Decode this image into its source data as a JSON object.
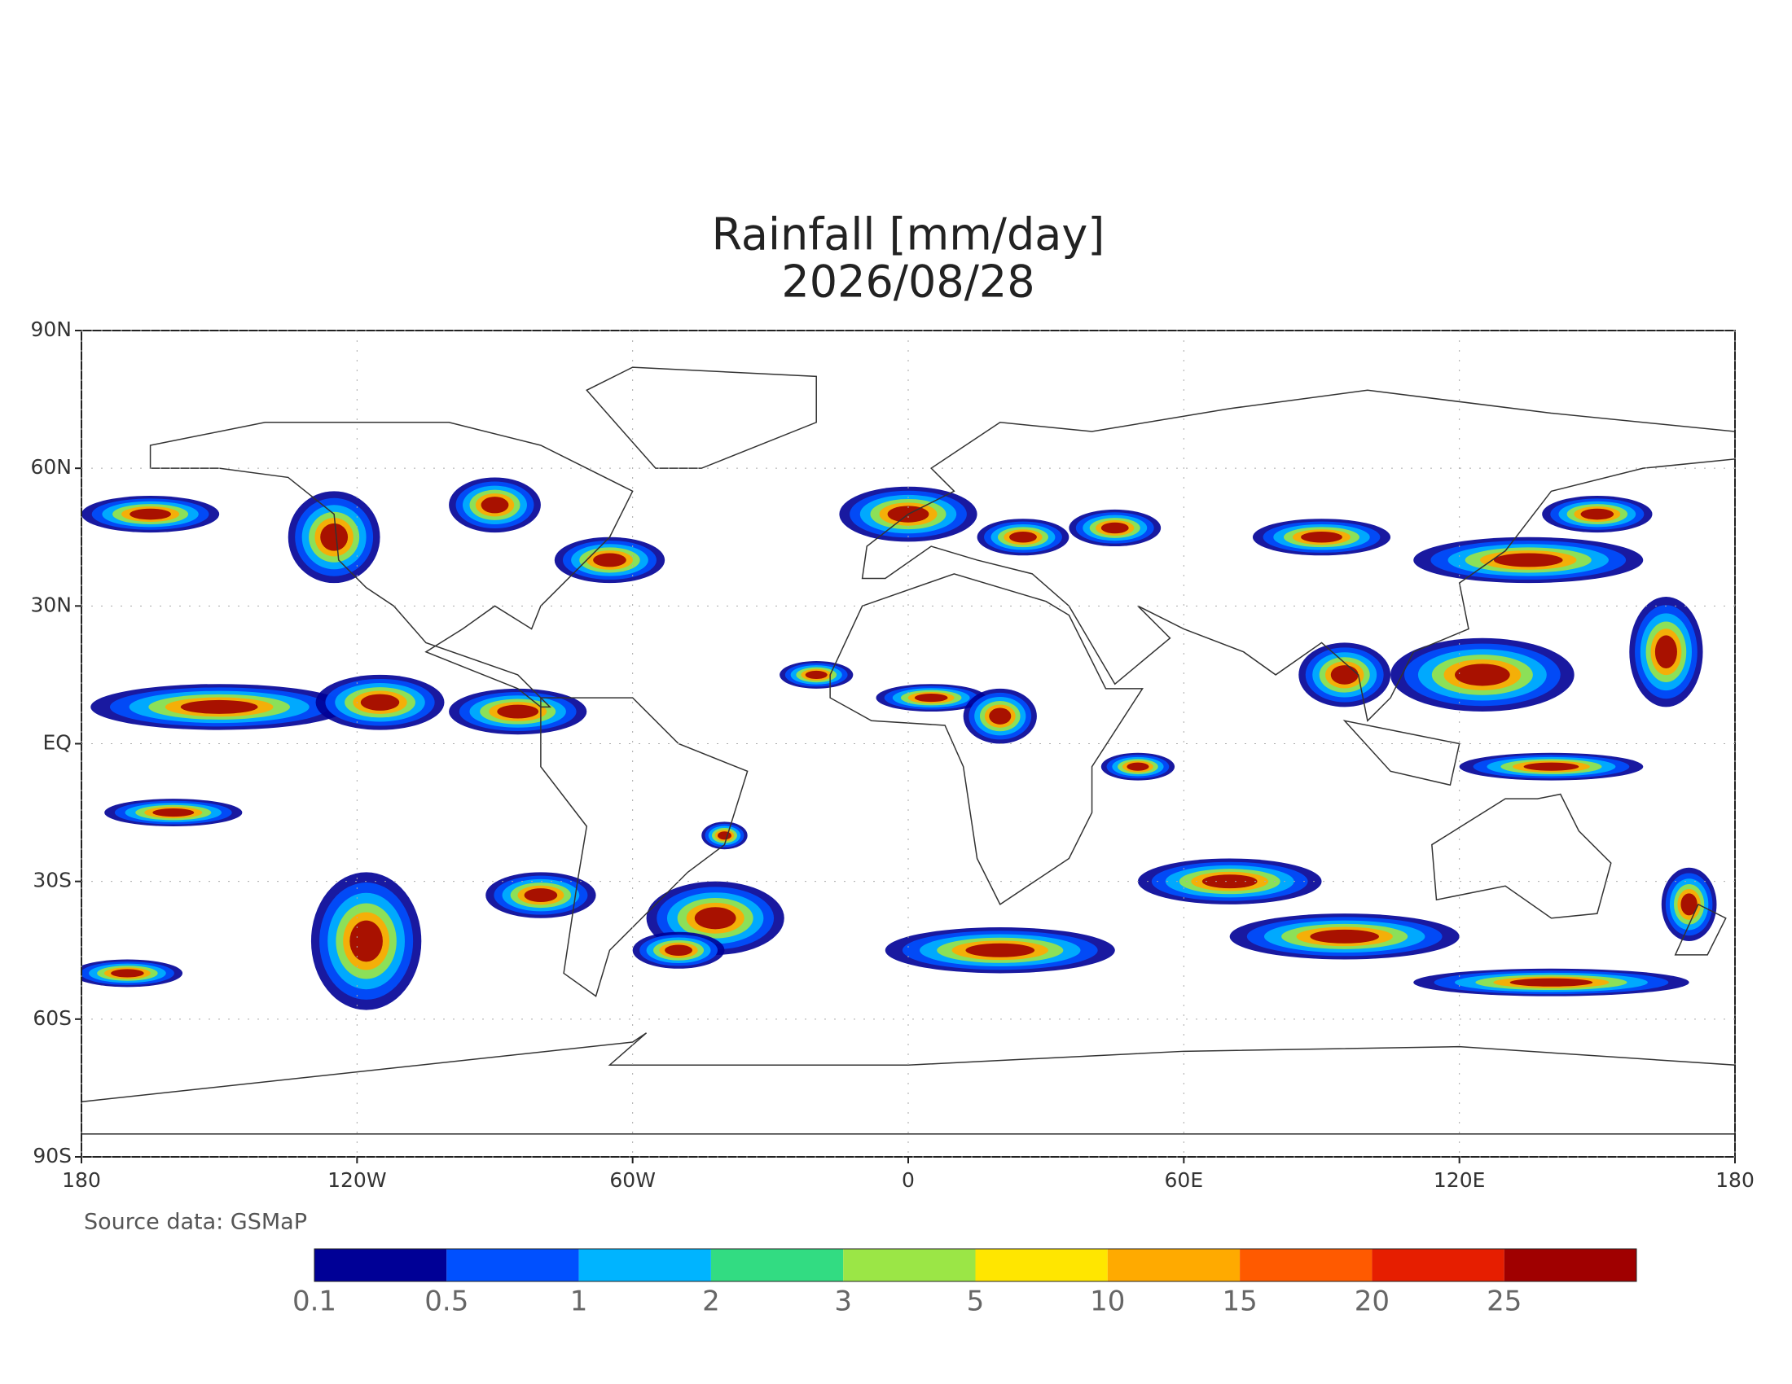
{
  "map": {
    "title": "Rainfall [mm/day]",
    "subtitle": "2026/08/28",
    "xticks": [
      {
        "value": -180,
        "label": "180"
      },
      {
        "value": -120,
        "label": "120W"
      },
      {
        "value": -60,
        "label": "60W"
      },
      0,
      {
        "value": 60,
        "label": "60E"
      },
      {
        "value": 120,
        "label": "120E"
      },
      180
    ],
    "yticks": [
      {
        "value": -90,
        "label": "90S"
      },
      {
        "value": -60,
        "label": "60S"
      },
      {
        "value": -30,
        "label": "30S"
      },
      {
        "value": 0,
        "label": "EQ"
      },
      {
        "value": 30,
        "label": "30N"
      },
      {
        "value": 60,
        "label": "60N"
      },
      {
        "value": 90,
        "label": "90N"
      }
    ],
    "xlim": [
      -180,
      180
    ],
    "ylim": [
      -90,
      90
    ],
    "grid": true,
    "source": "Source data: GSMaP",
    "colorbar": {
      "levels": [
        0.1,
        0.5,
        1,
        2,
        3,
        5,
        10,
        15,
        20,
        25
      ],
      "colors": [
        "#000096",
        "#0050ff",
        "#00b4ff",
        "#32dc82",
        "#9be646",
        "#ffe600",
        "#ffaa00",
        "#ff5a00",
        "#e61e00",
        "#a00000"
      ]
    }
  }
}
